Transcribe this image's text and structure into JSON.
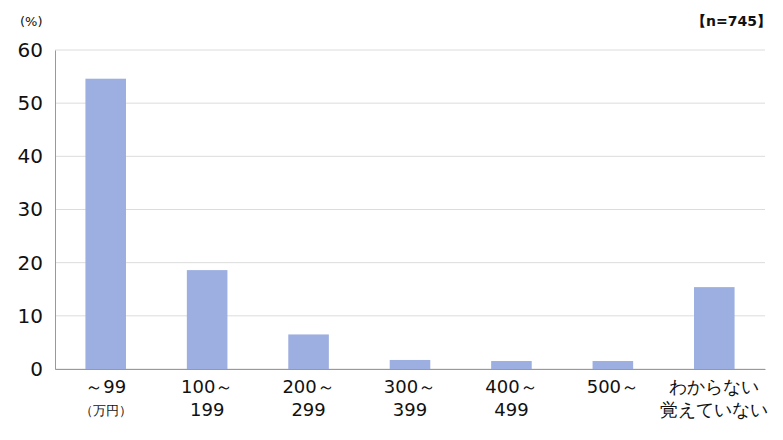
{
  "chart_data": {
    "type": "bar",
    "y_label": "(%)",
    "x_label": "（万円）",
    "annotation": "【n=745】",
    "categories": [
      "～99",
      "100～\n199",
      "200～\n299",
      "300～\n399",
      "400～\n499",
      "500～",
      "わからない\n覚えていない"
    ],
    "values": [
      54.6,
      18.6,
      6.5,
      1.7,
      1.5,
      1.5,
      15.4
    ],
    "color": "#9dafe0",
    "ylim": [
      0,
      60
    ],
    "yticks": [
      0,
      10,
      20,
      30,
      40,
      50,
      60
    ],
    "grid": true
  }
}
